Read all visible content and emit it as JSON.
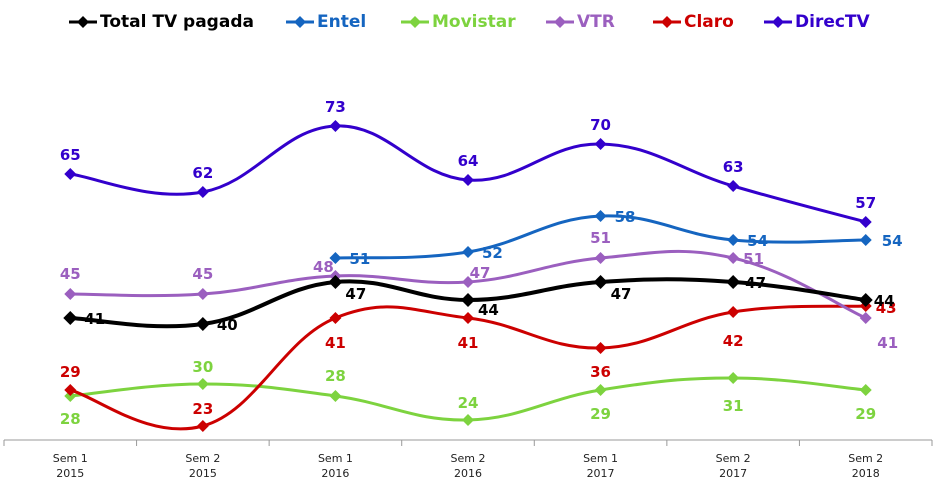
{
  "chart_data": {
    "type": "line",
    "title": "",
    "xlabel": "",
    "ylabel": "",
    "smooth": true,
    "grid": false,
    "legend_position": "top",
    "ylim": [
      20.7,
      94
    ],
    "categories": [
      {
        "line1": "Sem 1",
        "line2": "2015"
      },
      {
        "line1": "Sem 2",
        "line2": "2015"
      },
      {
        "line1": "Sem 1",
        "line2": "2016"
      },
      {
        "line1": "Sem 2",
        "line2": "2016"
      },
      {
        "line1": "Sem 1",
        "line2": "2017"
      },
      {
        "line1": "Sem 2",
        "line2": "2017"
      },
      {
        "line1": "Sem 2",
        "line2": "2018"
      }
    ],
    "series": [
      {
        "name": "Total TV pagada",
        "key": "total",
        "color": "#000000",
        "values": [
          41,
          40,
          47,
          44,
          47,
          47,
          44
        ]
      },
      {
        "name": "Entel",
        "key": "entel",
        "color": "#1565C0",
        "values": [
          null,
          null,
          51,
          52,
          58,
          54,
          54
        ]
      },
      {
        "name": "Movistar",
        "key": "movistar",
        "color": "#7DD33F",
        "values": [
          28,
          30,
          28,
          24,
          29,
          31,
          29
        ]
      },
      {
        "name": "VTR",
        "key": "vtr",
        "color": "#9B5FBF",
        "values": [
          45,
          45,
          48,
          47,
          51,
          51,
          41
        ]
      },
      {
        "name": "Claro",
        "key": "claro",
        "color": "#CC0000",
        "values": [
          29,
          23,
          41,
          41,
          36,
          42,
          43
        ]
      },
      {
        "name": "DirecTV",
        "key": "directv",
        "color": "#3300CC",
        "values": [
          65,
          62,
          73,
          64,
          70,
          63,
          57
        ]
      }
    ]
  }
}
